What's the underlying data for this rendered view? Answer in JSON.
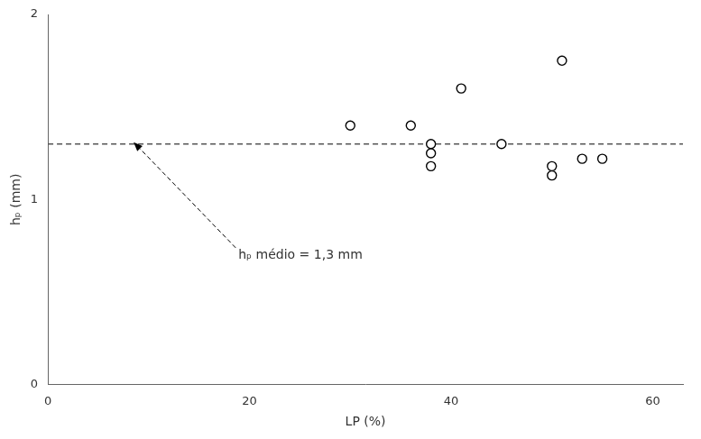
{
  "chart_data": {
    "type": "scatter",
    "x": [
      30,
      36,
      38,
      38,
      38,
      41,
      45,
      50,
      50,
      51,
      53,
      55
    ],
    "values": [
      1.4,
      1.4,
      1.3,
      1.25,
      1.18,
      1.6,
      1.3,
      1.18,
      1.13,
      1.75,
      1.22,
      1.22
    ],
    "color": "black",
    "marker": "circle",
    "mean_line": {
      "value": 1.3,
      "color": "#555555",
      "line_style": "dashed"
    },
    "annotations": [
      {
        "text": "hₚ médio = 1,3 mm"
      }
    ],
    "xlabel": "LP (%)",
    "ylabel": "hₚ (mm)",
    "xlim": [
      0,
      63
    ],
    "ylim": [
      0,
      2
    ],
    "xticks": [
      0,
      20,
      40,
      60
    ],
    "yticks": [
      0,
      1,
      2
    ],
    "grid": false
  }
}
